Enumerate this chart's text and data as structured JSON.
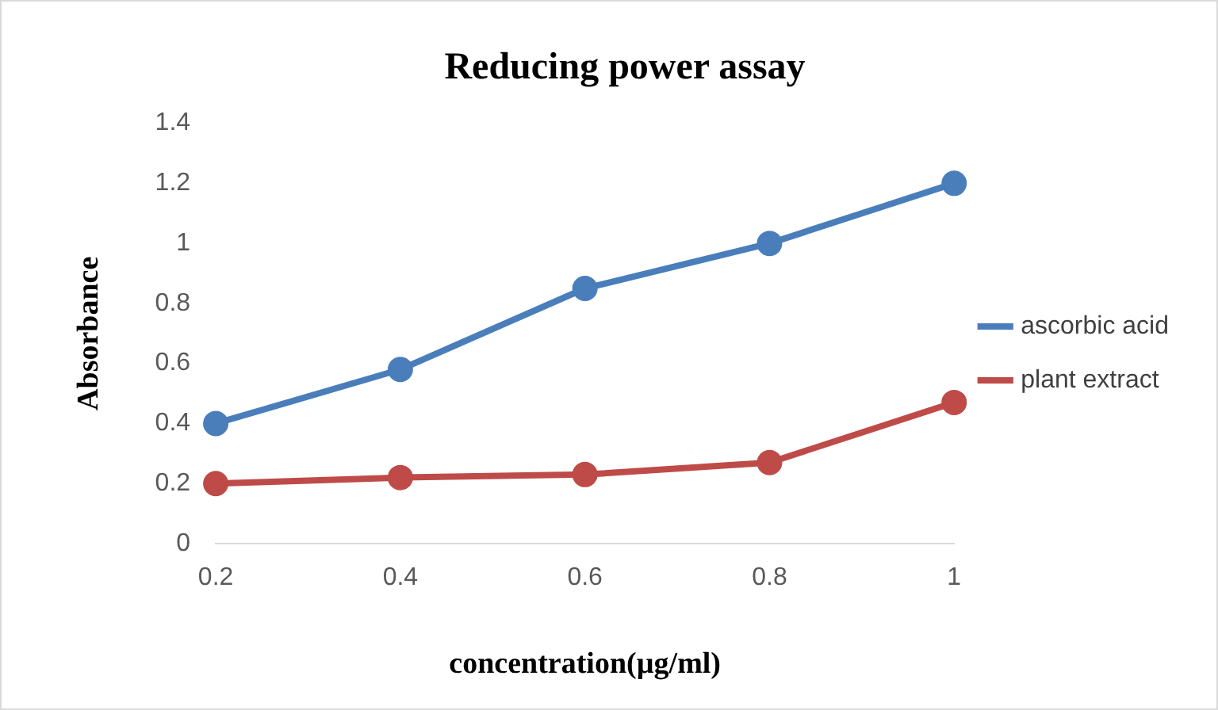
{
  "chart_data": {
    "type": "line",
    "title": "Reducing power assay",
    "xlabel": "concentration(µg/ml)",
    "ylabel": "Absorbance",
    "categories": [
      "0.2",
      "0.4",
      "0.6",
      "0.8",
      "1"
    ],
    "series": [
      {
        "name": "ascorbic acid",
        "color": "#4a7ebb",
        "values": [
          0.4,
          0.58,
          0.85,
          1.0,
          1.2
        ]
      },
      {
        "name": "plant extract",
        "color": "#be4b48",
        "values": [
          0.2,
          0.22,
          0.23,
          0.27,
          0.47
        ]
      }
    ],
    "ylim": [
      0,
      1.4
    ],
    "yticks": [
      0,
      0.2,
      0.4,
      0.6,
      0.8,
      1,
      1.2,
      1.4
    ],
    "grid": false,
    "legend": "right",
    "marker": "circle",
    "line_style": "solid"
  }
}
